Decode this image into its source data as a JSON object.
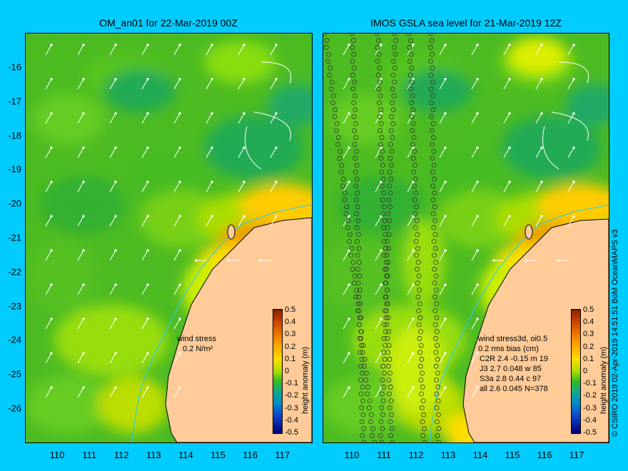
{
  "left_panel": {
    "title": "OM_an01 for 22-Mar-2019 00Z",
    "wind_label": "wind stress",
    "wind_scale": "0.2 N/m²"
  },
  "right_panel": {
    "title": "IMOS GSLA sea level  for 21-Mar-2019 12Z",
    "legend_header_1": "wind stress3d, oi0.5",
    "legend_header_2": "0.2 rms bias (cm)",
    "legend_rows": [
      "C2R   2.4 -0.15 m 19",
      "J3     2.7 0.048 w 85",
      "S3a    2.8 0.44 c 97",
      "all    2.6 0.045 N=378"
    ]
  },
  "colorbar": {
    "title": "height anomaly (m)",
    "ticks": [
      "0.5",
      "0.4",
      "0.3",
      "0.2",
      "0.1",
      "0",
      "-0.1",
      "-0.2",
      "-0.3",
      "-0.4",
      "-0.5"
    ]
  },
  "axes": {
    "lat_ticks": [
      "-16",
      "-17",
      "-18",
      "-19",
      "-20",
      "-21",
      "-22",
      "-23",
      "-24",
      "-25",
      "-26"
    ],
    "lon_ticks": [
      "110",
      "111",
      "112",
      "113",
      "114",
      "115",
      "116",
      "117"
    ]
  },
  "credit": "© CSIRO 2019  02-Apr-2019 14:51:51 BoM OceanMAPS v3",
  "chart_data": {
    "type": "heatmap",
    "xlabel": "",
    "ylabel": "",
    "xlim": [
      109,
      118
    ],
    "ylim": [
      -27,
      -15.1
    ],
    "color_scale": [
      -0.5,
      0.5
    ],
    "colors": {
      "ocean_mid": "#44bb22",
      "land": "#ffcc99",
      "coast": "#000000",
      "shelf_line": "#22ccff",
      "background": "#00ccff"
    }
  }
}
